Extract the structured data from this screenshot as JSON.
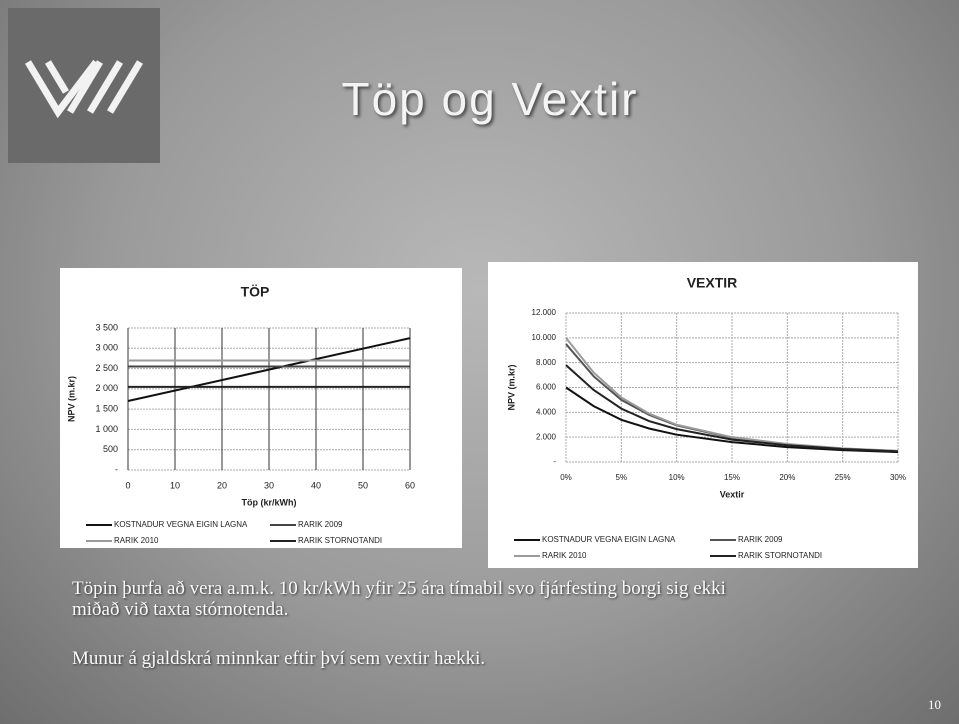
{
  "title": "Töp og Vextir",
  "bullets": [
    "Töpin þurfa að vera a.m.k. 10 kr/kWh yfir 25 ára tímabil svo fjárfesting borgi sig ekki miðað við taxta stórnotenda.",
    "Munur á gjaldskrá minnkar eftir því sem vextir hækki."
  ],
  "page_number": "10",
  "chart_data": [
    {
      "type": "line",
      "title": "TÖP",
      "x_label": "Töp (kr/kWh)",
      "y_label": "NPV (m.kr)",
      "x": [
        0,
        60
      ],
      "series": [
        {
          "name": "KOSTNADUR VEGNA EIGIN LAGNA",
          "color": "#111111",
          "values": [
            1700,
            3250
          ]
        },
        {
          "name": "RARIK 2009",
          "color": "#444444",
          "values": [
            2550,
            2550
          ]
        },
        {
          "name": "RARIK 2010",
          "color": "#9a9a9a",
          "values": [
            2700,
            2700
          ]
        },
        {
          "name": "RARIK STORNOTANDI",
          "color": "#222222",
          "values": [
            2050,
            2050
          ]
        }
      ],
      "xlim": [
        0,
        60
      ],
      "xticks": [
        0,
        10,
        20,
        30,
        40,
        50,
        60
      ],
      "ylim": [
        0,
        3500
      ],
      "yticks": [
        {
          "value": 0,
          "label": "-"
        },
        500,
        {
          "value": 1000,
          "label": "1 000"
        },
        {
          "value": 1500,
          "label": "1 500"
        },
        {
          "value": 2000,
          "label": "2 000"
        },
        {
          "value": 2500,
          "label": "2 500"
        },
        {
          "value": 3000,
          "label": "3 000"
        },
        {
          "value": 3500,
          "label": "3 500"
        }
      ],
      "grid": true
    },
    {
      "type": "line",
      "title": "VEXTIR",
      "x_label": "Vextir",
      "y_label": "NPV (m.kr)",
      "x": [
        0,
        2.5,
        5,
        7.5,
        10,
        15,
        20,
        25,
        30
      ],
      "series": [
        {
          "name": "KOSTNADUR VEGNA EIGIN LAGNA",
          "color": "#111111",
          "values": [
            6000,
            4500,
            3400,
            2700,
            2200,
            1600,
            1200,
            960,
            800
          ]
        },
        {
          "name": "RARIK 2009",
          "color": "#555555",
          "values": [
            9500,
            6900,
            5000,
            3800,
            2950,
            1950,
            1400,
            1080,
            880
          ]
        },
        {
          "name": "RARIK 2010",
          "color": "#9a9a9a",
          "values": [
            10000,
            7200,
            5200,
            3900,
            3000,
            2000,
            1450,
            1100,
            900
          ]
        },
        {
          "name": "RARIK STORNOTANDI",
          "color": "#222222",
          "values": [
            7800,
            5800,
            4300,
            3300,
            2650,
            1800,
            1350,
            1050,
            860
          ]
        }
      ],
      "xlim": [
        0,
        30
      ],
      "xticks": [
        {
          "value": 0,
          "label": "0%"
        },
        {
          "value": 5,
          "label": "5%"
        },
        {
          "value": 10,
          "label": "10%"
        },
        {
          "value": 15,
          "label": "15%"
        },
        {
          "value": 20,
          "label": "20%"
        },
        {
          "value": 25,
          "label": "25%"
        },
        {
          "value": 30,
          "label": "30%"
        }
      ],
      "ylim": [
        0,
        12000
      ],
      "yticks": [
        {
          "value": 0,
          "label": "-"
        },
        {
          "value": 2000,
          "label": "2.000"
        },
        {
          "value": 4000,
          "label": "4.000"
        },
        {
          "value": 6000,
          "label": "6.000"
        },
        {
          "value": 8000,
          "label": "8.000"
        },
        {
          "value": 10000,
          "label": "10.000"
        },
        {
          "value": 12000,
          "label": "12.000"
        }
      ],
      "grid": true
    }
  ]
}
